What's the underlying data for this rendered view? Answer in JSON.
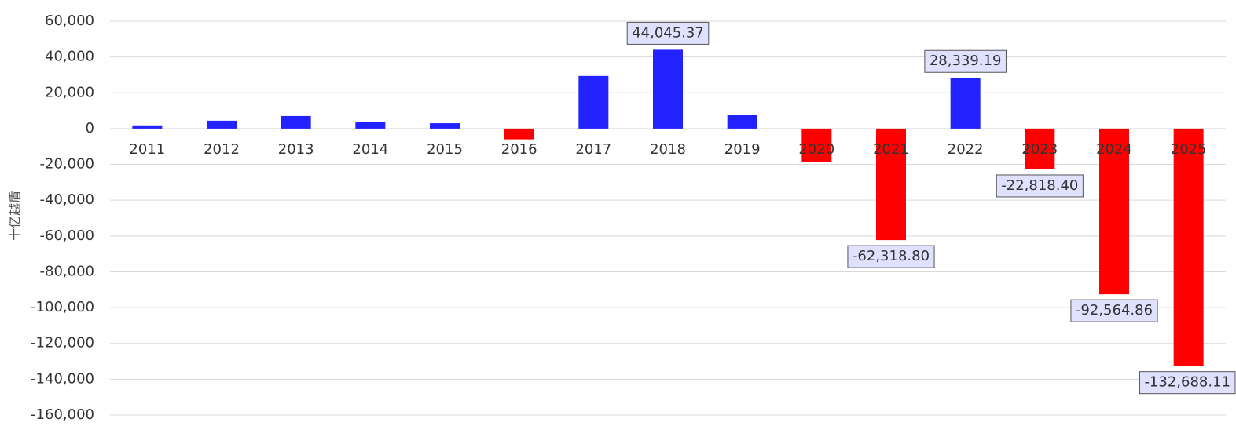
{
  "chart_data": {
    "type": "bar",
    "y_label": "十亿越盾",
    "categories": [
      "2011",
      "2012",
      "2013",
      "2014",
      "2015",
      "2016",
      "2017",
      "2018",
      "2019",
      "2020",
      "2021",
      "2022",
      "2023",
      "2024",
      "2025"
    ],
    "values": [
      1800,
      4400,
      7000,
      3500,
      3000,
      -6000,
      29400,
      44045.37,
      7500,
      -18800,
      -62318.8,
      28339.19,
      -22818.4,
      -92564.86,
      -132688.11
    ],
    "value_labels": [
      null,
      null,
      null,
      null,
      null,
      null,
      null,
      "44,045.37",
      null,
      null,
      "-62,318.80",
      "28,339.19",
      "-22,818.40",
      "-92,564.86",
      "-132,688.11"
    ],
    "colors": [
      "#2222ff",
      "#2222ff",
      "#2222ff",
      "#2222ff",
      "#2222ff",
      "#ff0000",
      "#2222ff",
      "#2222ff",
      "#2222ff",
      "#ff0000",
      "#ff0000",
      "#2222ff",
      "#ff0000",
      "#ff0000",
      "#ff0000"
    ],
    "ylim": [
      -160000,
      60000
    ],
    "yticks": [
      {
        "value": 60000,
        "label": "60,000"
      },
      {
        "value": 40000,
        "label": "40,000"
      },
      {
        "value": 20000,
        "label": "20,000"
      },
      0,
      {
        "value": -20000,
        "label": "-20,000"
      },
      {
        "value": -40000,
        "label": "-40,000"
      },
      {
        "value": -60000,
        "label": "-60,000"
      },
      {
        "value": -80000,
        "label": "-80,000"
      },
      {
        "value": -100000,
        "label": "-100,000"
      },
      {
        "value": -120000,
        "label": "-120,000"
      },
      {
        "value": -140000,
        "label": "-140,000"
      },
      {
        "value": -160000,
        "label": "-160,000"
      }
    ],
    "grid": true
  }
}
